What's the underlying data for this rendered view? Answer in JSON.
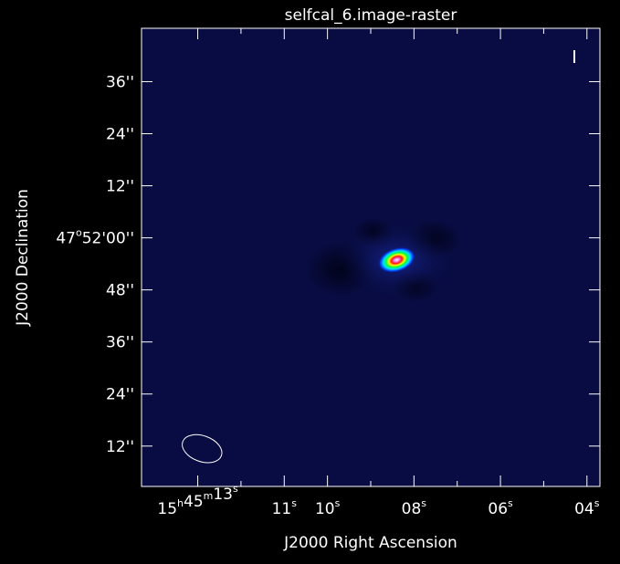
{
  "chart_data": {
    "type": "heatmap",
    "title": "selfcal_6.image-raster",
    "xlabel": "J2000 Right Ascension",
    "ylabel": "J2000 Declination",
    "colormap": "rainbow",
    "background_color": "#080c42",
    "frame_color": "#ffffff",
    "x_ticks": [
      {
        "pos": 13,
        "h": "15",
        "m": "45",
        "s": "13"
      },
      {
        "pos": 11,
        "h": "",
        "m": "",
        "s": "11"
      },
      {
        "pos": 10,
        "h": "",
        "m": "",
        "s": "10"
      },
      {
        "pos": 8,
        "h": "",
        "m": "",
        "s": "08"
      },
      {
        "pos": 6,
        "h": "",
        "m": "",
        "s": "06"
      },
      {
        "pos": 4,
        "h": "",
        "m": "",
        "s": "04"
      }
    ],
    "x_minor_ticks": [
      12,
      9,
      7,
      5
    ],
    "xlim": [
      14.3,
      3.7
    ],
    "y_ticks": [
      {
        "pos": 36,
        "deg": "",
        "min": "",
        "sec": "36''"
      },
      {
        "pos": 24,
        "deg": "",
        "min": "",
        "sec": "24''"
      },
      {
        "pos": 12,
        "deg": "",
        "min": "",
        "sec": "12''"
      },
      {
        "pos": 0,
        "deg": "47",
        "min": "52'",
        "sec": "00''"
      },
      {
        "pos": -12,
        "deg": "",
        "min": "",
        "sec": "48''"
      },
      {
        "pos": -24,
        "deg": "",
        "min": "",
        "sec": "36''"
      },
      {
        "pos": -36,
        "deg": "",
        "min": "",
        "sec": "24''"
      },
      {
        "pos": -48,
        "deg": "",
        "min": "",
        "sec": "12''"
      }
    ],
    "ylim": [
      -57.3,
      48.3
    ],
    "source": {
      "ra": 8.4,
      "dec": -5.1,
      "maj": 4.5,
      "min": 2.8,
      "pa": -18
    },
    "beam": {
      "ra": 12.9,
      "dec": -48.6,
      "maj": 6.4,
      "min": 4.0,
      "pa": -18
    }
  }
}
